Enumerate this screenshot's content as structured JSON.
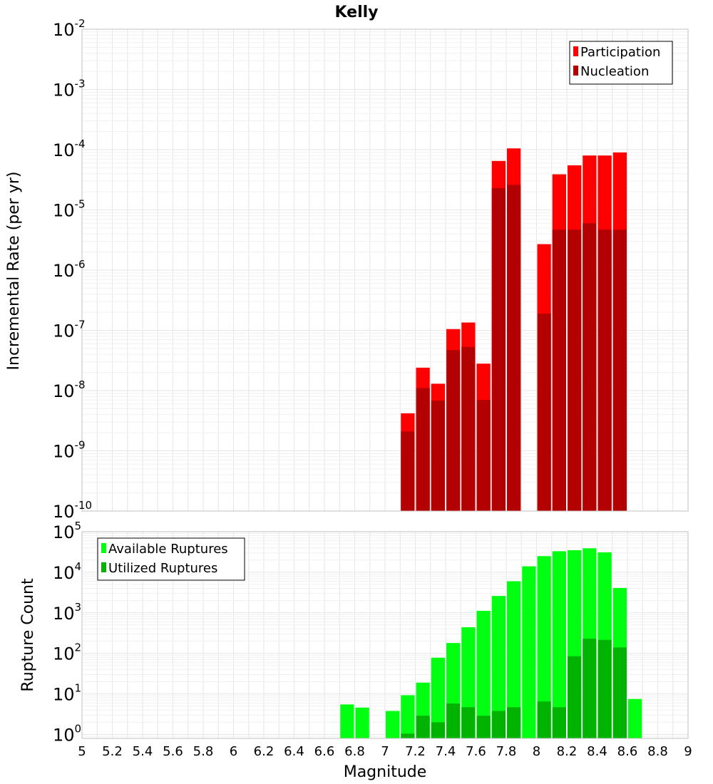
{
  "chart_data": [
    {
      "type": "bar",
      "title": "Kelly",
      "xlabel": "",
      "ylabel": "Incremental Rate (per yr)",
      "yscale": "log",
      "ylim": [
        1e-10,
        0.01
      ],
      "xlim": [
        5,
        9
      ],
      "grid": true,
      "legend_position": "top-right",
      "y_ticks": [
        {
          "base": "10",
          "exp": "-10"
        },
        {
          "base": "10",
          "exp": "-9"
        },
        {
          "base": "10",
          "exp": "-8"
        },
        {
          "base": "10",
          "exp": "-7"
        },
        {
          "base": "10",
          "exp": "-6"
        },
        {
          "base": "10",
          "exp": "-5"
        },
        {
          "base": "10",
          "exp": "-4"
        },
        {
          "base": "10",
          "exp": "-3"
        },
        {
          "base": "10",
          "exp": "-2"
        }
      ],
      "x": [
        7.1,
        7.2,
        7.3,
        7.4,
        7.5,
        7.6,
        7.7,
        7.8,
        8.0,
        8.1,
        8.2,
        8.3,
        8.4,
        8.5
      ],
      "series": [
        {
          "name": "Participation",
          "color": "#ff0000",
          "values": [
            4.2e-09,
            2.4e-08,
            1.3e-08,
            1.05e-07,
            1.35e-07,
            2.8e-08,
            6.5e-05,
            0.000105,
            2.7e-06,
            3.9e-05,
            5.5e-05,
            8e-05,
            8e-05,
            9e-05
          ]
        },
        {
          "name": "Nucleation",
          "color": "#b30000",
          "values": [
            2.1e-09,
            1.1e-08,
            6.8e-09,
            4.7e-08,
            5.3e-08,
            7e-09,
            2.3e-05,
            2.6e-05,
            1.9e-07,
            4.7e-06,
            4.7e-06,
            6e-06,
            4.7e-06,
            4.7e-06
          ]
        }
      ]
    },
    {
      "type": "bar",
      "title": "",
      "xlabel": "Magnitude",
      "ylabel": "Rupture Count",
      "yscale": "log",
      "ylim": [
        0.8,
        100000.0
      ],
      "xlim": [
        5,
        9
      ],
      "grid": true,
      "legend_position": "top-left",
      "y_ticks": [
        {
          "base": "10",
          "exp": "0"
        },
        {
          "base": "10",
          "exp": "1"
        },
        {
          "base": "10",
          "exp": "2"
        },
        {
          "base": "10",
          "exp": "3"
        },
        {
          "base": "10",
          "exp": "4"
        },
        {
          "base": "10",
          "exp": "5"
        }
      ],
      "x_ticks": [
        "5",
        "5.2",
        "5.4",
        "5.6",
        "5.8",
        "6",
        "6.2",
        "6.4",
        "6.6",
        "6.8",
        "7",
        "7.2",
        "7.4",
        "7.6",
        "7.8",
        "8",
        "8.2",
        "8.4",
        "8.6",
        "8.8",
        "9"
      ],
      "x": [
        6.7,
        6.8,
        7.0,
        7.1,
        7.2,
        7.3,
        7.4,
        7.5,
        7.6,
        7.7,
        7.8,
        7.9,
        8.0,
        8.1,
        8.2,
        8.3,
        8.4,
        8.5,
        8.6
      ],
      "series": [
        {
          "name": "Available Ruptures",
          "color": "#00ff10",
          "values": [
            5.5,
            4.6,
            3.8,
            9.3,
            19,
            78,
            180,
            440,
            1120,
            2600,
            6000,
            14000,
            25000,
            33000,
            35000,
            39000,
            31000,
            4100,
            7.5
          ]
        },
        {
          "name": "Utilized Ruptures",
          "color": "#00b300",
          "values": [
            null,
            null,
            null,
            1.05,
            2.9,
            2.0,
            5.8,
            4.7,
            2.9,
            3.8,
            4.7,
            null,
            6.5,
            4.7,
            85,
            230,
            215,
            140,
            null
          ]
        }
      ]
    }
  ]
}
